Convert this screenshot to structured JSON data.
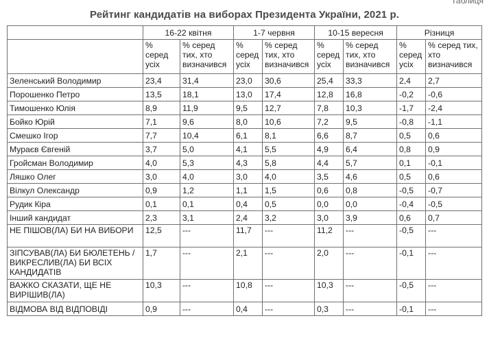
{
  "title": "Рейтинг кандидатів на виборах Президента України, 2021 р.",
  "corner_text": "Таблиця",
  "periods": [
    "16-22 квітня",
    "1-7 червня",
    "10-15 вересня",
    "Різниця"
  ],
  "subheaders": [
    "% серед усіх",
    "% серед тих, хто визначився"
  ],
  "rows": [
    {
      "name": "Зеленський Володимир",
      "v": [
        "23,4",
        "31,4",
        "23,0",
        "30,6",
        "25,4",
        "33,3",
        "2,4",
        "2,7"
      ]
    },
    {
      "name": "Порошенко Петро",
      "v": [
        "13,5",
        "18,1",
        "13,0",
        "17,4",
        "12,8",
        "16,8",
        "-0,2",
        "-0,6"
      ]
    },
    {
      "name": "Тимошенко Юлія",
      "v": [
        "8,9",
        "11,9",
        "9,5",
        "12,7",
        "7,8",
        "10,3",
        "-1,7",
        "-2,4"
      ]
    },
    {
      "name": "Бойко Юрій",
      "v": [
        "7,1",
        "9,6",
        "8,0",
        "10,6",
        "7,2",
        "9,5",
        "-0,8",
        "-1,1"
      ]
    },
    {
      "name": "Смешко Ігор",
      "v": [
        "7,7",
        "10,4",
        "6,1",
        "8,1",
        "6,6",
        "8,7",
        "0,5",
        "0,6"
      ]
    },
    {
      "name": "Мураєв Євгеній",
      "v": [
        "3,7",
        "5,0",
        "4,1",
        "5,5",
        "4,9",
        "6,4",
        "0,8",
        "0,9"
      ]
    },
    {
      "name": "Гройсман Володимир",
      "v": [
        "4,0",
        "5,3",
        "4,3",
        "5,8",
        "4,4",
        "5,7",
        "0,1",
        "-0,1"
      ]
    },
    {
      "name": "Ляшко Олег",
      "v": [
        "3,0",
        "4,0",
        "3,0",
        "4,0",
        "3,5",
        "4,6",
        "0,5",
        "0,6"
      ]
    },
    {
      "name": "Вілкул Олександр",
      "v": [
        "0,9",
        "1,2",
        "1,1",
        "1,5",
        "0,6",
        "0,8",
        "-0,5",
        "-0,7"
      ]
    },
    {
      "name": "Рудик Кіра",
      "v": [
        "0,1",
        "0,1",
        "0,4",
        "0,5",
        "0,0",
        "0,0",
        "-0,4",
        "-0,5"
      ]
    },
    {
      "name": "Інший кандидат",
      "v": [
        "2,3",
        "3,1",
        "2,4",
        "3,2",
        "3,0",
        "3,9",
        "0,6",
        "0,7"
      ]
    },
    {
      "name": "НЕ ПІШОВ(ЛА) БИ НА ВИБОРИ",
      "v": [
        "12,5",
        "---",
        "11,7",
        "---",
        "11,2",
        "---",
        "-0,5",
        "---"
      ]
    },
    {
      "name": "ЗІПСУВАВ(ЛА) БИ БЮЛЕТЕНЬ / ВИКРЕСЛИВ(ЛА) БИ ВСІХ КАНДИДАТІВ",
      "v": [
        "1,7",
        "---",
        "2,1",
        "---",
        "2,0",
        "---",
        "-0,1",
        "---"
      ]
    },
    {
      "name": "ВАЖКО СКАЗАТИ, ЩЕ НЕ ВИРІШИВ(ЛА)",
      "v": [
        "10,3",
        "---",
        "10,8",
        "---",
        "10,3",
        "---",
        "-0,5",
        "---"
      ]
    },
    {
      "name": "ВІДМОВА ВІД ВІДПОВІДІ",
      "v": [
        "0,9",
        "---",
        "0,4",
        "---",
        "0,3",
        "---",
        "-0,1",
        "---"
      ]
    }
  ]
}
